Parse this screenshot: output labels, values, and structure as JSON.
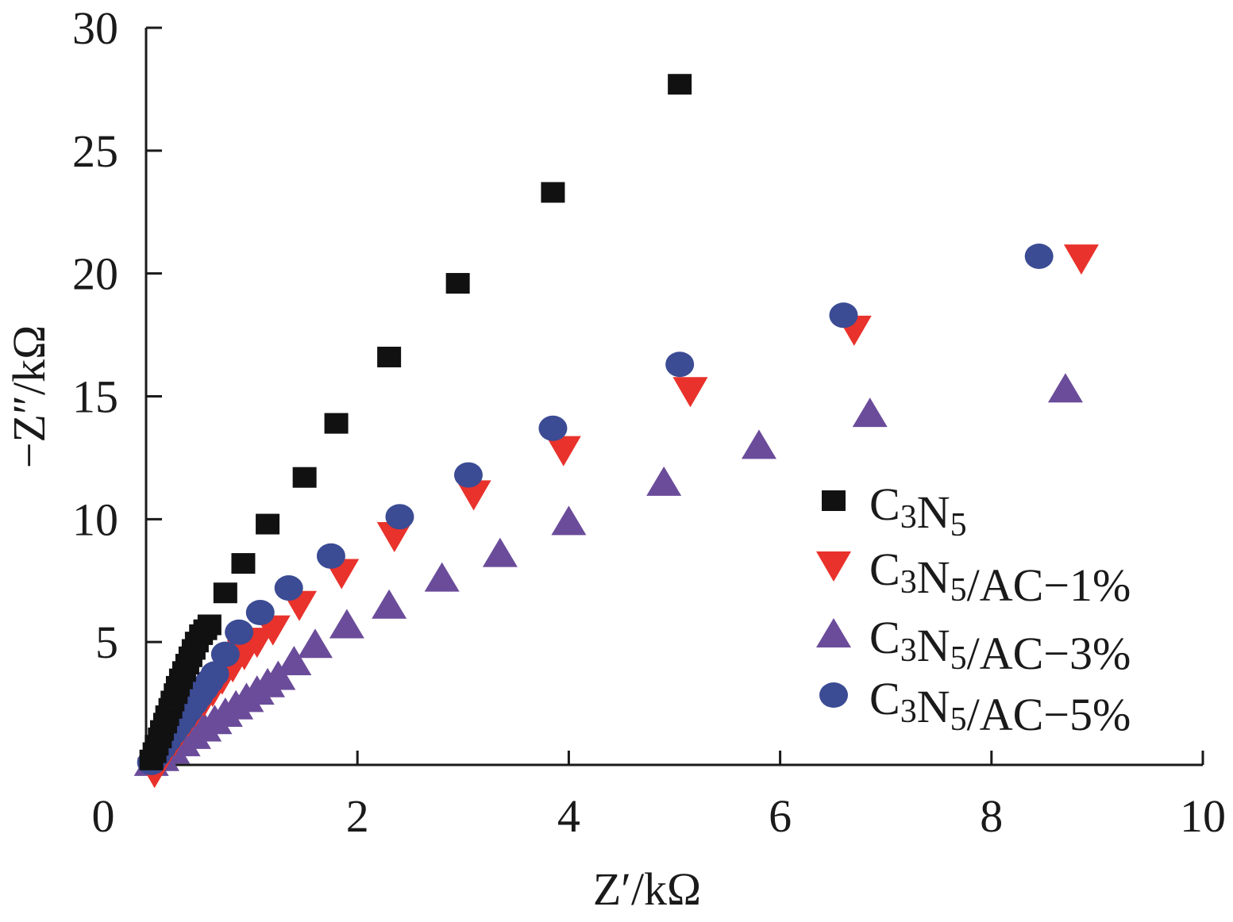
{
  "chart_data": {
    "type": "scatter",
    "xlabel": "Z′/kΩ",
    "ylabel": "−Z″/kΩ",
    "xlim": [
      0,
      10
    ],
    "ylim": [
      0,
      30
    ],
    "xticks": [
      0,
      2,
      4,
      6,
      8,
      10
    ],
    "yticks": [
      5,
      10,
      15,
      20,
      25,
      30
    ],
    "x_tick_labels": [
      "0",
      "2",
      "4",
      "6",
      "8",
      "10"
    ],
    "y_tick_labels": [
      "5",
      "10",
      "15",
      "20",
      "25",
      "30"
    ],
    "grid": false,
    "legend_position": "right",
    "series": [
      {
        "name": "C3N5",
        "marker": "square",
        "color": "#111111",
        "x": [
          0.05,
          0.08,
          0.1,
          0.13,
          0.15,
          0.18,
          0.2,
          0.23,
          0.25,
          0.28,
          0.3,
          0.33,
          0.36,
          0.39,
          0.42,
          0.45,
          0.48,
          0.52,
          0.56,
          0.6,
          0.75,
          0.92,
          1.15,
          1.5,
          1.8,
          2.3,
          2.95,
          3.85,
          5.05
        ],
        "y": [
          0.2,
          0.5,
          0.8,
          1.1,
          1.4,
          1.7,
          2.0,
          2.3,
          2.6,
          2.9,
          3.2,
          3.5,
          3.8,
          4.1,
          4.4,
          4.7,
          5.0,
          5.3,
          5.5,
          5.7,
          7.0,
          8.2,
          9.8,
          11.7,
          13.9,
          16.6,
          19.6,
          23.3,
          27.7
        ]
      },
      {
        "name": "C3N5/AC−1%",
        "marker": "triangle-down",
        "color": "#e8322b",
        "x": [
          0.08,
          0.15,
          0.2,
          0.27,
          0.33,
          0.4,
          0.47,
          0.55,
          0.63,
          0.72,
          0.82,
          0.93,
          1.05,
          1.2,
          1.45,
          1.85,
          2.35,
          3.1,
          3.95,
          5.15,
          6.7,
          8.85
        ],
        "y": [
          -0.3,
          0.2,
          0.6,
          1.0,
          1.4,
          1.8,
          2.2,
          2.6,
          3.0,
          3.5,
          4.0,
          4.5,
          5.0,
          5.5,
          6.5,
          7.8,
          9.3,
          11.0,
          12.8,
          15.2,
          17.7,
          20.6
        ]
      },
      {
        "name": "C3N5/AC−3%",
        "marker": "triangle-up",
        "color": "#6b4c9a",
        "x": [
          0.05,
          0.15,
          0.25,
          0.35,
          0.45,
          0.55,
          0.65,
          0.75,
          0.85,
          0.95,
          1.05,
          1.15,
          1.25,
          1.4,
          1.6,
          1.9,
          2.3,
          2.8,
          3.35,
          4.0,
          4.9,
          5.8,
          6.85,
          8.7
        ],
        "y": [
          0.1,
          0.3,
          0.6,
          0.9,
          1.2,
          1.5,
          1.8,
          2.1,
          2.4,
          2.7,
          3.0,
          3.3,
          3.6,
          4.2,
          4.9,
          5.7,
          6.5,
          7.6,
          8.6,
          9.9,
          11.5,
          13.0,
          14.3,
          15.3
        ]
      },
      {
        "name": "C3N5/AC−5%",
        "marker": "circle",
        "color": "#3b4b94",
        "x": [
          0.05,
          0.1,
          0.15,
          0.2,
          0.25,
          0.3,
          0.35,
          0.4,
          0.45,
          0.5,
          0.55,
          0.6,
          0.65,
          0.75,
          0.88,
          1.08,
          1.35,
          1.75,
          2.4,
          3.05,
          3.85,
          5.05,
          6.6,
          8.45
        ],
        "y": [
          0.1,
          0.4,
          0.7,
          1.0,
          1.3,
          1.6,
          1.9,
          2.2,
          2.5,
          2.8,
          3.1,
          3.4,
          3.7,
          4.5,
          5.4,
          6.2,
          7.2,
          8.5,
          10.1,
          11.8,
          13.7,
          16.3,
          18.3,
          20.7
        ]
      }
    ]
  },
  "legend": {
    "items": [
      {
        "base": "C",
        "sub1": "3",
        "mid": "N",
        "sub2": "5",
        "suffix": ""
      },
      {
        "base": "C",
        "sub1": "3",
        "mid": "N",
        "sub2": "5",
        "suffix": "/AC−1%"
      },
      {
        "base": "C",
        "sub1": "3",
        "mid": "N",
        "sub2": "5",
        "suffix": "/AC−3%"
      },
      {
        "base": "C",
        "sub1": "3",
        "mid": "N",
        "sub2": "5",
        "suffix": "/AC−5%"
      }
    ]
  }
}
